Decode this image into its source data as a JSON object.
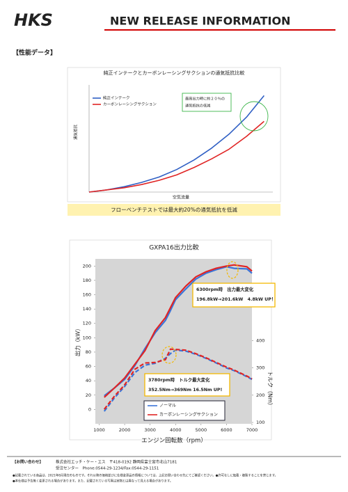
{
  "header": {
    "logo": "HKS",
    "title": "NEW RELEASE INFORMATION"
  },
  "section_label": "【性能データ】",
  "caption": "フローベンチテストでは最大約20%の通気抵抗を低減",
  "chart_data": [
    {
      "type": "line",
      "title": "純正インテークとカーボンレーシングサクションの通気抵抗比較",
      "x_label": "空気流量",
      "y_label": "通気抵抗",
      "annotation": [
        "最高出力時に約２０％の",
        "通気抵抗の低減"
      ],
      "x": [
        0,
        1,
        2,
        3,
        4,
        5,
        6,
        7,
        8,
        9,
        10
      ],
      "xlim": [
        0,
        10.5
      ],
      "ylim": [
        0,
        100
      ],
      "series": [
        {
          "name": "純正インテーク",
          "color": "#2f5fc4",
          "values": [
            0,
            2,
            5,
            9,
            14,
            21,
            30,
            41,
            54,
            70,
            90
          ]
        },
        {
          "name": "カーボンレーシングサクション",
          "color": "#e02424",
          "values": [
            0,
            2,
            4,
            7,
            11,
            16,
            23,
            31,
            40,
            52,
            66
          ]
        }
      ]
    },
    {
      "type": "line",
      "title": "GXPA16出力比較",
      "x_label": "エンジン回転数（rpm）",
      "y_label": "出力（kW）",
      "y2_label": "トルク（Nm）",
      "x": [
        1200,
        1600,
        2000,
        2400,
        2800,
        3200,
        3600,
        3800,
        4000,
        4400,
        4800,
        5200,
        5600,
        6000,
        6300,
        6800,
        7000
      ],
      "xlim": [
        850,
        7000
      ],
      "xticks": [
        1000,
        2000,
        3000,
        4000,
        5000,
        6000,
        7000
      ],
      "ylim": [
        -20,
        210
      ],
      "yticks": [
        0,
        20,
        40,
        60,
        80,
        100,
        120,
        140,
        160,
        180,
        200
      ],
      "y2lim": [
        95,
        700
      ],
      "y2ticks": [
        100,
        200,
        300,
        400
      ],
      "legend": "lower left",
      "annotations": [
        [
          "6300rpm時　出力最大変化",
          "196.8kW→201.6kW　4.8kW UP！"
        ],
        [
          "3780rpm時　トルク最大変化",
          "352.5Nm→369Nm  16.5Nm UP!"
        ]
      ],
      "series": [
        {
          "name": "ノーマル",
          "color": "#3b74d8",
          "values": [
            19,
            30,
            42,
            61,
            85,
            107,
            124,
            138,
            153,
            168,
            182,
            190,
            195,
            199,
            196.8,
            196,
            190
          ],
          "y2_values": [
            141,
            190,
            232,
            283,
            310,
            317,
            335,
            352.5,
            365,
            362,
            350,
            335,
            318,
            300,
            290,
            268,
            258
          ]
        },
        {
          "name": "カーボンレーシングサクション",
          "color": "#e02424",
          "values": [
            17,
            30,
            44,
            63,
            82,
            110,
            128,
            142,
            156,
            172,
            185,
            192,
            197,
            200,
            201.6,
            199,
            193
          ],
          "y2_values": [
            148,
            196,
            238,
            295,
            318,
            320,
            330,
            369,
            368,
            365,
            352,
            337,
            320,
            303,
            292,
            270,
            260
          ]
        }
      ]
    }
  ],
  "footer": {
    "contact_label": "【お問い合わせ】",
    "company": "株式会社エッチ・ケー・エス　〒418-0192 静岡県富士宮市北山7181",
    "phone": "受注センター　Phone:0544-29-1234/Fax:0544-29-1151",
    "notes": [
      "●記載されている商品は、2021年8月現在のものです。それ以降の価格並びに仕様変更品の情報については、上記お問い合わせ先にてご確認ください。●許可なしに転載・複製することを禁じます。",
      "●本仕様は予告無く変更される場合があります。また、記載されている写真は実物とは異なって見える場合があります。"
    ]
  }
}
